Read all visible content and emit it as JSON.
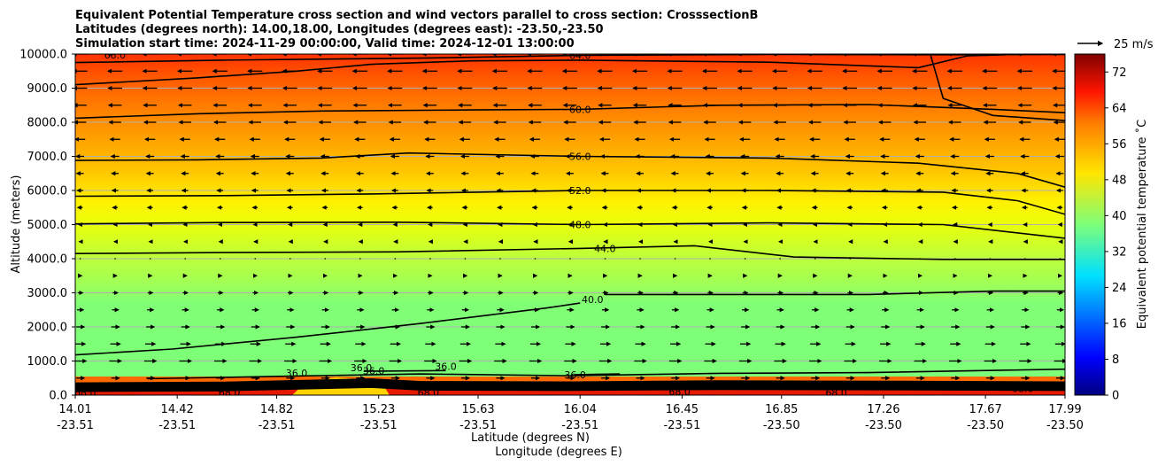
{
  "chart_data": {
    "type": "contourf",
    "title": [
      "Equivalent Potential Temperature cross section and wind vectors parallel to cross section: CrosssectionB",
      "Latitudes (degrees north): 14.00,18.00, Longitudes (degrees east): -23.50,-23.50",
      "Simulation start time: 2024-11-29 00:00:00, Valid time: 2024-12-01 13:00:00"
    ],
    "ylabel": "Altitude (meters)",
    "xlabel_lat": "Latitude (degrees N)",
    "xlabel_lon": "Longitude (degrees E)",
    "ylim": [
      0,
      10000
    ],
    "yticks": [
      0,
      1000,
      2000,
      3000,
      4000,
      5000,
      6000,
      7000,
      8000,
      9000,
      10000
    ],
    "ytick_labels": [
      "0.0",
      "1000.0",
      "2000.0",
      "3000.0",
      "4000.0",
      "5000.0",
      "6000.0",
      "7000.0",
      "8000.0",
      "9000.0",
      "10000.0"
    ],
    "xlim": [
      14.01,
      17.99
    ],
    "xticks_lat": [
      14.01,
      14.42,
      14.82,
      15.23,
      15.63,
      16.04,
      16.45,
      16.85,
      17.26,
      17.67,
      17.99
    ],
    "xtick_labels_lat": [
      "14.01",
      "14.42",
      "14.82",
      "15.23",
      "15.63",
      "16.04",
      "16.45",
      "16.85",
      "17.26",
      "17.67",
      "17.99"
    ],
    "xtick_labels_lon": [
      "-23.51",
      "-23.51",
      "-23.51",
      "-23.51",
      "-23.51",
      "-23.51",
      "-23.51",
      "-23.50",
      "-23.50",
      "-23.50",
      "-23.50"
    ],
    "grid": "horizontal",
    "colorbar": {
      "label": "Equivalent potential temperature $^\\circ$C",
      "label_text": "Equivalent potential temperature ˚C",
      "range": [
        0,
        76
      ],
      "ticks": [
        0,
        8,
        16,
        24,
        32,
        40,
        48,
        56,
        64,
        72
      ],
      "tick_labels": [
        "0",
        "8",
        "16",
        "24",
        "32",
        "40",
        "48",
        "56",
        "64",
        "72"
      ],
      "colormap": "jet"
    },
    "quiver_key": {
      "label": "25 m/s",
      "speed": 25
    },
    "contour_labels": [
      {
        "text": "64.0",
        "x": 16.04,
        "y": 9960
      },
      {
        "text": "60.0",
        "x": 16.04,
        "y": 8380
      },
      {
        "text": "56.0",
        "x": 16.04,
        "y": 7000
      },
      {
        "text": "52.0",
        "x": 16.04,
        "y": 6000
      },
      {
        "text": "48.0",
        "x": 16.04,
        "y": 5000
      },
      {
        "text": "44.0",
        "x": 16.14,
        "y": 4300
      },
      {
        "text": "40.0",
        "x": 16.09,
        "y": 2800
      },
      {
        "text": "36.0",
        "x": 15.21,
        "y": 720
      },
      {
        "text": "36.0",
        "x": 16.02,
        "y": 600
      },
      {
        "text": "36.0",
        "x": 15.5,
        "y": 850
      },
      {
        "text": "36.0",
        "x": 15.16,
        "y": 800
      },
      {
        "text": "36.0",
        "x": 14.9,
        "y": 650
      },
      {
        "text": "68.0",
        "x": 14.17,
        "y": 9980
      },
      {
        "text": "68.0",
        "x": 14.05,
        "y": 80
      },
      {
        "text": "68.0",
        "x": 14.63,
        "y": 80
      },
      {
        "text": "68.0",
        "x": 15.43,
        "y": 80
      },
      {
        "text": "68.0",
        "x": 16.44,
        "y": 100
      },
      {
        "text": "68.0",
        "x": 17.07,
        "y": 80
      },
      {
        "text": "68.0",
        "x": 17.82,
        "y": 200
      }
    ],
    "theta_e_levels_approx": [
      {
        "altitude": 0,
        "value": 70
      },
      {
        "altitude": 500,
        "value": 36
      },
      {
        "altitude": 1000,
        "value": 38
      },
      {
        "altitude": 3000,
        "value": 40
      },
      {
        "altitude": 4000,
        "value": 43
      },
      {
        "altitude": 5000,
        "value": 48
      },
      {
        "altitude": 6000,
        "value": 52
      },
      {
        "altitude": 7000,
        "value": 56
      },
      {
        "altitude": 8000,
        "value": 61
      },
      {
        "altitude": 9000,
        "value": 64
      },
      {
        "altitude": 10000,
        "value": 67
      }
    ],
    "wind_profile_approx": [
      {
        "altitude": 250,
        "u": -6
      },
      {
        "altitude": 500,
        "u": 8
      },
      {
        "altitude": 1000,
        "u": 12
      },
      {
        "altitude": 1500,
        "u": 10
      },
      {
        "altitude": 2000,
        "u": 8
      },
      {
        "altitude": 3000,
        "u": 5
      },
      {
        "altitude": 4000,
        "u": 1
      },
      {
        "altitude": 4500,
        "u": -2
      },
      {
        "altitude": 5000,
        "u": -3
      },
      {
        "altitude": 5500,
        "u": -5
      },
      {
        "altitude": 6000,
        "u": -6
      },
      {
        "altitude": 7000,
        "u": -8
      },
      {
        "altitude": 8000,
        "u": -12
      },
      {
        "altitude": 9000,
        "u": -14
      },
      {
        "altitude": 10000,
        "u": -15
      }
    ]
  }
}
